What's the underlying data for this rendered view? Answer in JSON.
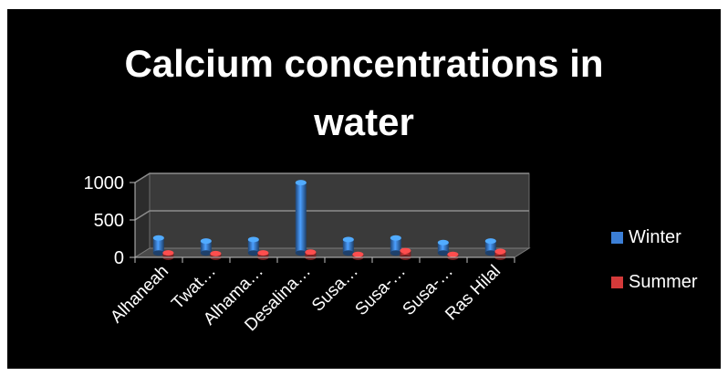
{
  "chart_data": {
    "type": "bar",
    "title_lines": [
      "Calcium concentrations in",
      "water"
    ],
    "categories": [
      "Alhaneah",
      "Twat…",
      "Alhama…",
      "Desalina…",
      "Susa…",
      "Susa-…",
      "Susa-…",
      "Ras Hilal"
    ],
    "series": [
      {
        "name": "Winter",
        "color": "#3c7fd6",
        "values": [
          200,
          160,
          180,
          940,
          180,
          200,
          140,
          160
        ]
      },
      {
        "name": "Summer",
        "color": "#d43a3a",
        "values": [
          60,
          50,
          60,
          70,
          40,
          90,
          40,
          80
        ]
      }
    ],
    "yticks": [
      "1000",
      "500",
      "0"
    ],
    "ylim": [
      0,
      1000
    ],
    "grid": true,
    "legend_position": "right",
    "style": "3d-cylinder"
  }
}
